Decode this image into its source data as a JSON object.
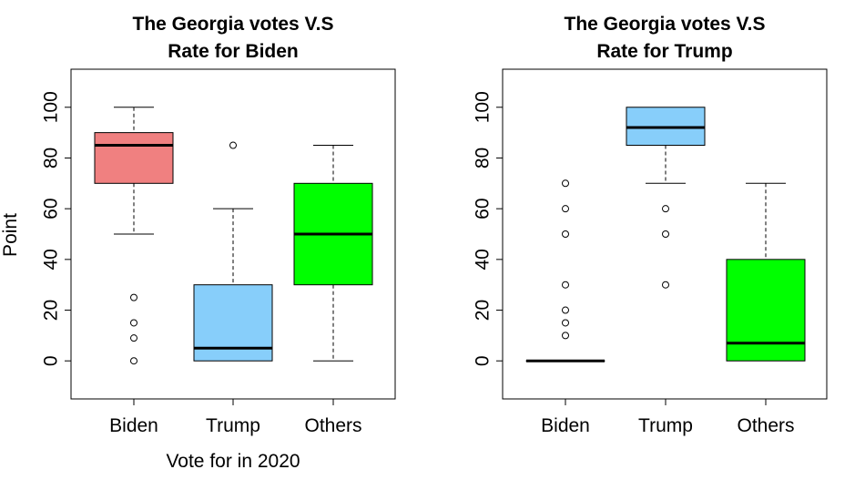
{
  "chart_data": [
    {
      "type": "box",
      "title": [
        "The Georgia votes V.S",
        "Rate for Biden"
      ],
      "xlabel": "Vote for in 2020",
      "ylabel": "Point",
      "ylim": [
        -15,
        115
      ],
      "yticks": [
        0,
        20,
        40,
        60,
        80,
        100
      ],
      "categories": [
        "Biden",
        "Trump",
        "Others"
      ],
      "boxes": [
        {
          "category": "Biden",
          "color": "#F08080",
          "whisker_low": 50,
          "q1": 70,
          "median": 85,
          "q3": 90,
          "whisker_high": 100,
          "outliers": [
            25,
            15,
            9,
            0
          ]
        },
        {
          "category": "Trump",
          "color": "#87CEFA",
          "whisker_low": 0,
          "q1": 0,
          "median": 5,
          "q3": 30,
          "whisker_high": 60,
          "outliers": [
            85
          ]
        },
        {
          "category": "Others",
          "color": "#00FF00",
          "whisker_low": 0,
          "q1": 30,
          "median": 50,
          "q3": 70,
          "whisker_high": 85,
          "outliers": []
        }
      ]
    },
    {
      "type": "box",
      "title": [
        "The Georgia votes V.S",
        "Rate for Trump"
      ],
      "xlabel": "",
      "ylabel": "",
      "ylim": [
        -15,
        115
      ],
      "yticks": [
        0,
        20,
        40,
        60,
        80,
        100
      ],
      "categories": [
        "Biden",
        "Trump",
        "Others"
      ],
      "boxes": [
        {
          "category": "Biden",
          "color": "#F08080",
          "whisker_low": 0,
          "q1": 0,
          "median": 0,
          "q3": 0,
          "whisker_high": 0,
          "outliers": [
            70,
            60,
            50,
            30,
            20,
            15,
            10
          ]
        },
        {
          "category": "Trump",
          "color": "#87CEFA",
          "whisker_low": 70,
          "q1": 85,
          "median": 92,
          "q3": 100,
          "whisker_high": 100,
          "outliers": [
            60,
            50,
            30
          ]
        },
        {
          "category": "Others",
          "color": "#00FF00",
          "whisker_low": 0,
          "q1": 0,
          "median": 7,
          "q3": 40,
          "whisker_high": 70,
          "outliers": []
        }
      ]
    }
  ]
}
